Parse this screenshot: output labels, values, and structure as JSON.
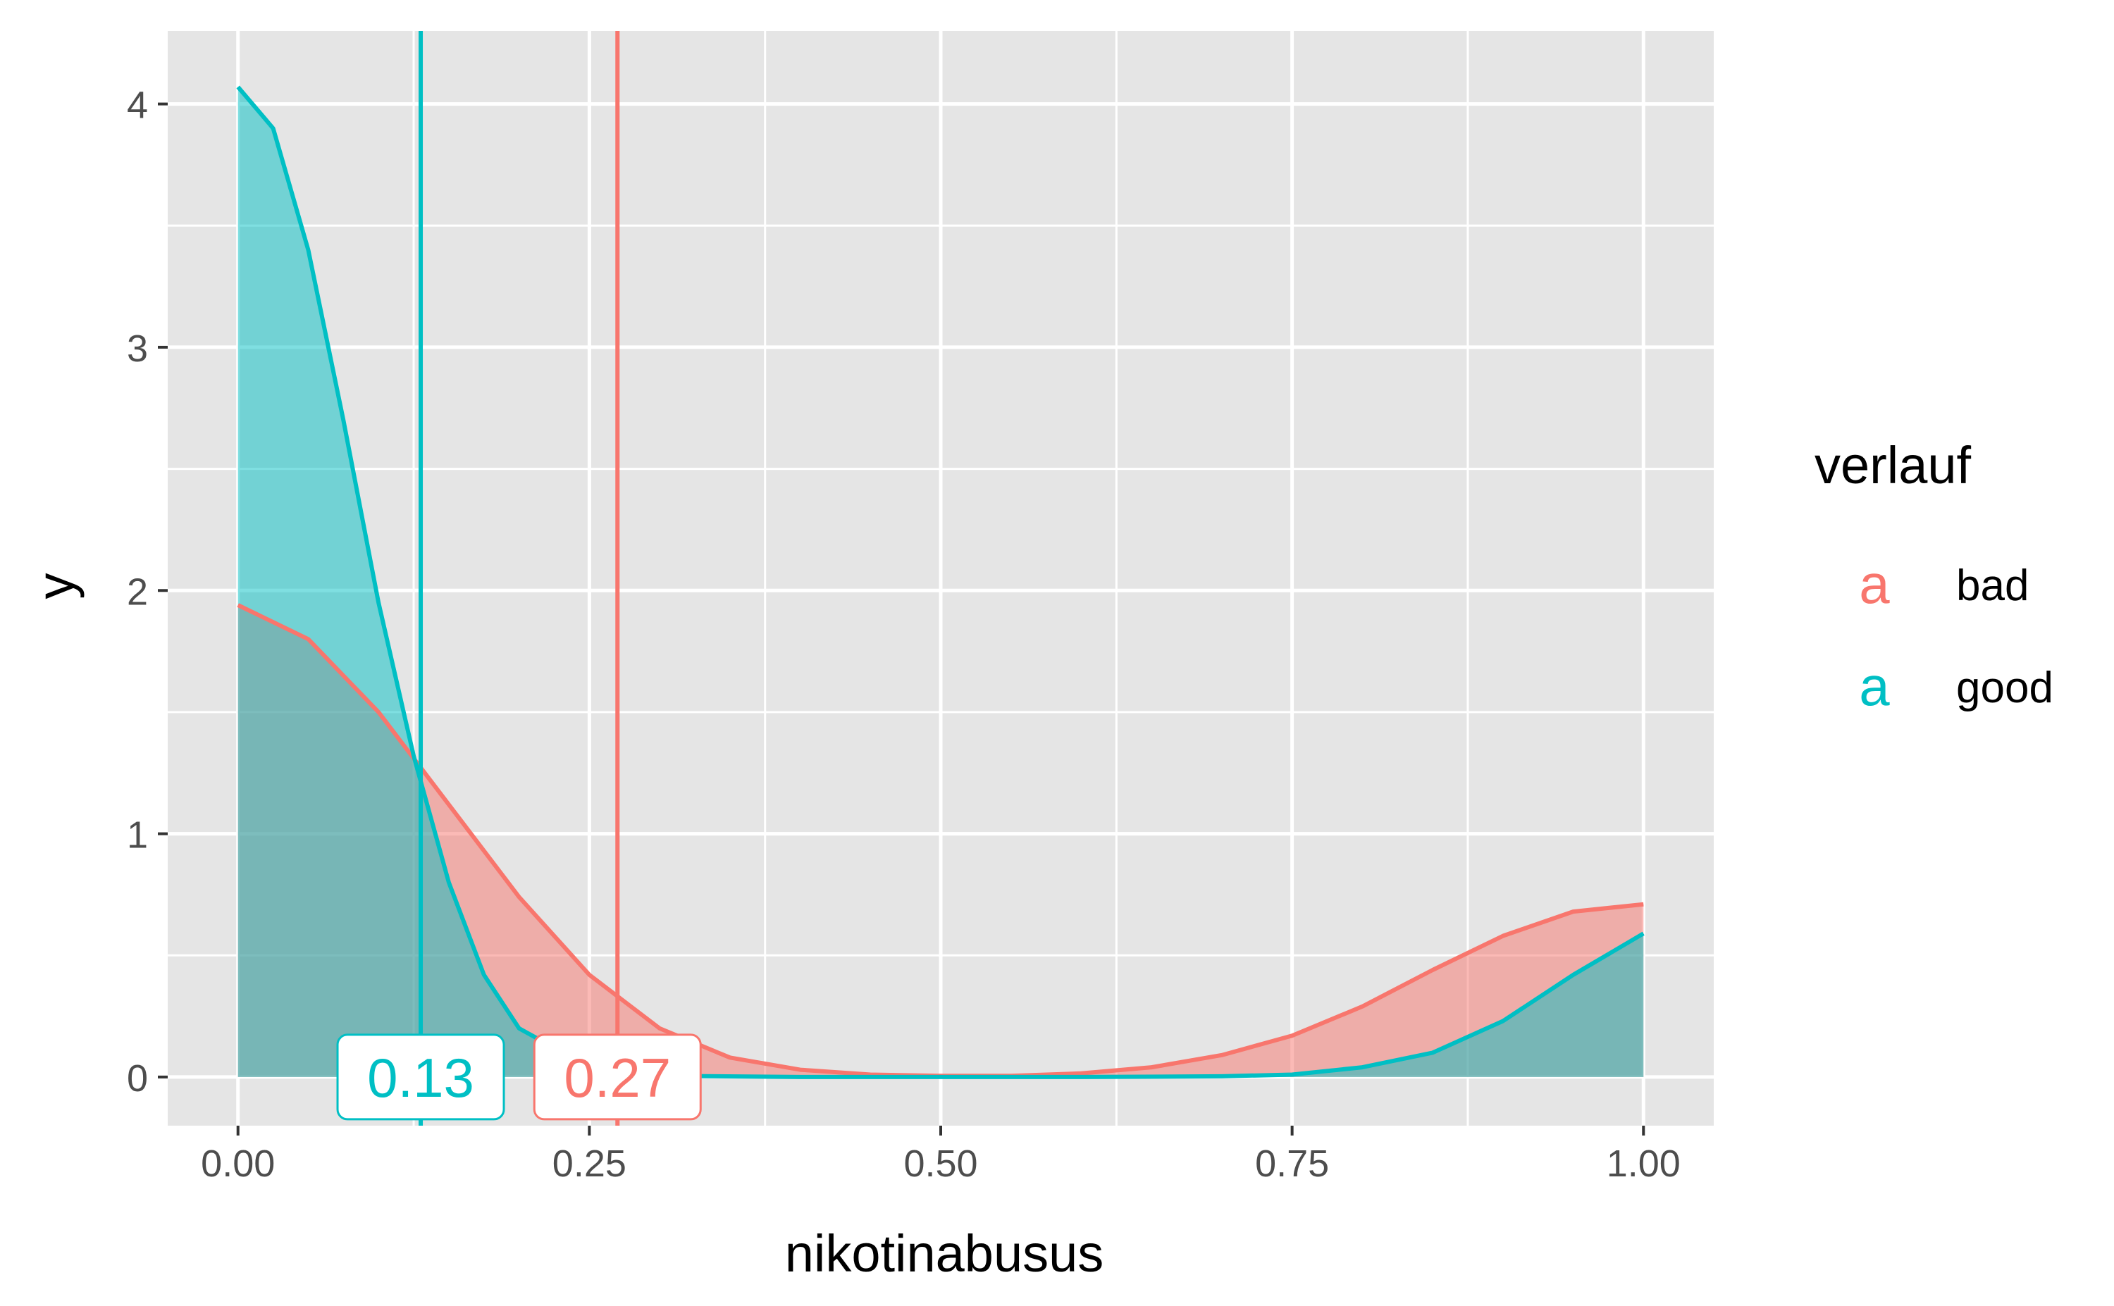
{
  "chart_data": {
    "type": "area",
    "title": "",
    "xlabel": "nikotinabusus",
    "ylabel": "y",
    "xlim": [
      -0.1,
      2.1
    ],
    "ylim": [
      -0.2,
      4.3
    ],
    "x_ticks": [
      0.0,
      0.25,
      0.5,
      0.75,
      1.0
    ],
    "x_tick_labels": [
      "0.00",
      "0.25",
      "0.50",
      "0.75",
      "1.00"
    ],
    "y_ticks": [
      0,
      1,
      2,
      3,
      4
    ],
    "y_tick_labels": [
      "0",
      "1",
      "2",
      "3",
      "4"
    ],
    "grid": true,
    "legend": {
      "title": "verlauf",
      "placement": "right",
      "key_glyph": "a"
    },
    "series": [
      {
        "name": "bad",
        "color": "#F8766D",
        "mean": 0.27,
        "mean_label": "0.27",
        "x": [
          0.0,
          0.05,
          0.1,
          0.15,
          0.2,
          0.25,
          0.3,
          0.35,
          0.4,
          0.45,
          0.5,
          0.55,
          0.6,
          0.65,
          0.7,
          0.75,
          0.8,
          0.85,
          0.9,
          0.95,
          1.0
        ],
        "y": [
          1.94,
          1.8,
          1.5,
          1.12,
          0.74,
          0.42,
          0.2,
          0.08,
          0.03,
          0.01,
          0.005,
          0.005,
          0.015,
          0.04,
          0.09,
          0.17,
          0.29,
          0.44,
          0.58,
          0.68,
          0.71
        ]
      },
      {
        "name": "good",
        "color": "#00BFC4",
        "mean": 0.13,
        "mean_label": "0.13",
        "x": [
          0.0,
          0.025,
          0.05,
          0.075,
          0.1,
          0.125,
          0.15,
          0.175,
          0.2,
          0.25,
          0.3,
          0.4,
          0.5,
          0.6,
          0.7,
          0.75,
          0.8,
          0.85,
          0.9,
          0.95,
          1.0
        ],
        "y": [
          4.07,
          3.9,
          3.4,
          2.7,
          1.95,
          1.32,
          0.8,
          0.42,
          0.2,
          0.04,
          0.005,
          0.0,
          0.0,
          0.0,
          0.003,
          0.01,
          0.04,
          0.1,
          0.23,
          0.42,
          0.59
        ]
      }
    ]
  }
}
